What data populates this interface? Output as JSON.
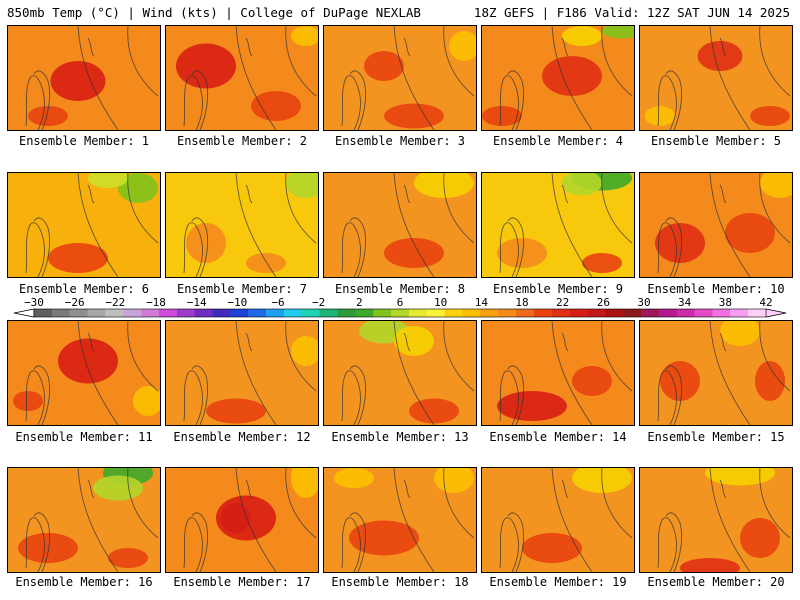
{
  "header": {
    "left": "850mb Temp (°C) | Wind (kts) | College of DuPage NEXLAB",
    "right": "18Z GEFS | F186 Valid: 12Z SAT JUN 14 2025"
  },
  "members": [
    {
      "label": "Ensemble Member: 1",
      "base": "#f48a1c",
      "hot": [
        [
          70,
          55,
          55,
          40,
          "#d81e14"
        ],
        [
          40,
          90,
          40,
          20,
          "#e8420e"
        ]
      ],
      "cool": []
    },
    {
      "label": "Ensemble Member: 2",
      "base": "#f48a1c",
      "hot": [
        [
          40,
          40,
          60,
          45,
          "#d81e14"
        ],
        [
          110,
          80,
          50,
          30,
          "#e8420e"
        ]
      ],
      "cool": [
        [
          140,
          10,
          30,
          20,
          "#fcc000"
        ]
      ]
    },
    {
      "label": "Ensemble Member: 3",
      "base": "#f39420",
      "hot": [
        [
          60,
          40,
          40,
          30,
          "#e8420e"
        ],
        [
          90,
          90,
          60,
          25,
          "#e8420e"
        ]
      ],
      "cool": [
        [
          140,
          20,
          30,
          30,
          "#fcc000"
        ]
      ]
    },
    {
      "label": "Ensemble Member: 4",
      "base": "#f48a1c",
      "hot": [
        [
          90,
          50,
          60,
          40,
          "#e03014"
        ],
        [
          20,
          90,
          40,
          20,
          "#e8420e"
        ]
      ],
      "cool": [
        [
          140,
          5,
          40,
          15,
          "#7fc31c"
        ],
        [
          100,
          10,
          40,
          20,
          "#f7d000"
        ]
      ]
    },
    {
      "label": "Ensemble Member: 5",
      "base": "#f39420",
      "hot": [
        [
          80,
          30,
          45,
          30,
          "#e03014"
        ],
        [
          130,
          90,
          40,
          20,
          "#e8420e"
        ]
      ],
      "cool": [
        [
          20,
          90,
          30,
          20,
          "#fcc000"
        ]
      ]
    },
    {
      "label": "Ensemble Member: 6",
      "base": "#f7b00c",
      "hot": [
        [
          70,
          85,
          60,
          30,
          "#e8420e"
        ]
      ],
      "cool": [
        [
          130,
          15,
          40,
          30,
          "#7fc31c"
        ],
        [
          100,
          5,
          40,
          20,
          "#cce02a"
        ]
      ]
    },
    {
      "label": "Ensemble Member: 7",
      "base": "#f8c80c",
      "hot": [
        [
          40,
          70,
          40,
          40,
          "#f48a1c"
        ],
        [
          100,
          90,
          40,
          20,
          "#f48a1c"
        ]
      ],
      "cool": [
        [
          140,
          10,
          40,
          30,
          "#b2d62a"
        ]
      ]
    },
    {
      "label": "Ensemble Member: 8",
      "base": "#f39420",
      "hot": [
        [
          90,
          80,
          60,
          30,
          "#e8420e"
        ]
      ],
      "cool": [
        [
          120,
          10,
          60,
          30,
          "#f7d000"
        ]
      ]
    },
    {
      "label": "Ensemble Member: 9",
      "base": "#f8c80c",
      "hot": [
        [
          40,
          80,
          50,
          30,
          "#f48a1c"
        ],
        [
          120,
          90,
          40,
          20,
          "#e8420e"
        ]
      ],
      "cool": [
        [
          120,
          5,
          60,
          25,
          "#3ea82a"
        ],
        [
          100,
          10,
          40,
          25,
          "#b2d62a"
        ]
      ]
    },
    {
      "label": "Ensemble Member: 10",
      "base": "#f48a1c",
      "hot": [
        [
          40,
          70,
          50,
          40,
          "#e03014"
        ],
        [
          110,
          60,
          50,
          40,
          "#e8420e"
        ]
      ],
      "cool": [
        [
          140,
          10,
          40,
          30,
          "#fcc000"
        ]
      ]
    },
    {
      "label": "Ensemble Member: 11",
      "base": "#f48a1c",
      "hot": [
        [
          80,
          40,
          60,
          45,
          "#d81e14"
        ],
        [
          20,
          80,
          30,
          20,
          "#e8420e"
        ]
      ],
      "cool": [
        [
          140,
          80,
          30,
          30,
          "#fcc000"
        ]
      ]
    },
    {
      "label": "Ensemble Member: 12",
      "base": "#f39420",
      "hot": [
        [
          70,
          90,
          60,
          25,
          "#e8420e"
        ]
      ],
      "cool": [
        [
          140,
          30,
          30,
          30,
          "#fcc000"
        ]
      ]
    },
    {
      "label": "Ensemble Member: 13",
      "base": "#f39420",
      "hot": [
        [
          110,
          90,
          50,
          25,
          "#e8420e"
        ]
      ],
      "cool": [
        [
          60,
          10,
          50,
          25,
          "#b2d62a"
        ],
        [
          90,
          20,
          40,
          30,
          "#f7d000"
        ]
      ]
    },
    {
      "label": "Ensemble Member: 14",
      "base": "#f48a1c",
      "hot": [
        [
          50,
          85,
          70,
          30,
          "#d81e14"
        ],
        [
          110,
          60,
          40,
          30,
          "#e8420e"
        ]
      ],
      "cool": []
    },
    {
      "label": "Ensemble Member: 15",
      "base": "#f39420",
      "hot": [
        [
          40,
          60,
          40,
          40,
          "#e8420e"
        ],
        [
          130,
          60,
          30,
          40,
          "#e8420e"
        ]
      ],
      "cool": [
        [
          100,
          10,
          40,
          30,
          "#fcc000"
        ]
      ]
    },
    {
      "label": "Ensemble Member: 16",
      "base": "#f39420",
      "hot": [
        [
          40,
          80,
          60,
          30,
          "#e8420e"
        ],
        [
          120,
          90,
          40,
          20,
          "#e8420e"
        ]
      ],
      "cool": [
        [
          120,
          5,
          50,
          25,
          "#3ea82a"
        ],
        [
          110,
          20,
          50,
          25,
          "#b2d62a"
        ]
      ]
    },
    {
      "label": "Ensemble Member: 17",
      "base": "#f48a1c",
      "hot": [
        [
          70,
          50,
          30,
          30,
          "#b01818"
        ],
        [
          80,
          50,
          60,
          45,
          "#d81e14"
        ]
      ],
      "cool": [
        [
          140,
          10,
          30,
          40,
          "#fcc000"
        ]
      ]
    },
    {
      "label": "Ensemble Member: 18",
      "base": "#f39420",
      "hot": [
        [
          60,
          70,
          70,
          35,
          "#e8420e"
        ]
      ],
      "cool": [
        [
          130,
          10,
          40,
          30,
          "#fcc000"
        ],
        [
          30,
          10,
          40,
          20,
          "#fcc000"
        ]
      ]
    },
    {
      "label": "Ensemble Member: 19",
      "base": "#f39420",
      "hot": [
        [
          70,
          80,
          60,
          30,
          "#e8420e"
        ]
      ],
      "cool": [
        [
          120,
          10,
          60,
          30,
          "#f7d000"
        ]
      ]
    },
    {
      "label": "Ensemble Member: 20",
      "base": "#f39420",
      "hot": [
        [
          120,
          70,
          40,
          40,
          "#e8420e"
        ],
        [
          70,
          100,
          60,
          20,
          "#e03014"
        ]
      ],
      "cool": [
        [
          100,
          5,
          70,
          25,
          "#f7d000"
        ]
      ]
    }
  ],
  "colorbar": {
    "ticks": [
      "−30",
      "−26",
      "−22",
      "−18",
      "−14",
      "−10",
      "−6",
      "−2",
      "2",
      "6",
      "10",
      "14",
      "18",
      "22",
      "26",
      "30",
      "34",
      "38",
      "42"
    ],
    "colors": [
      "#5f5f5f",
      "#7a7a7a",
      "#8f8f8f",
      "#a7a7a7",
      "#bfbfbf",
      "#c7a5d8",
      "#d27ad8",
      "#d04cd8",
      "#9c3ccc",
      "#6f2bc4",
      "#3f2bbf",
      "#1d42d6",
      "#1e6ae6",
      "#1ea0f0",
      "#22ccec",
      "#1ed2b4",
      "#1eb478",
      "#2a9a3c",
      "#3ea82a",
      "#7fc31c",
      "#b2d62a",
      "#e4ea30",
      "#fcf23c",
      "#fcd20c",
      "#fcc000",
      "#f7a012",
      "#f48a1c",
      "#ee6a1c",
      "#e8420e",
      "#e03014",
      "#d81e14",
      "#c41818",
      "#a81212",
      "#8c1a1a",
      "#9c1a5a",
      "#b41a8c",
      "#cc2aa8",
      "#e04cc8",
      "#f070e0",
      "#f8a0f0",
      "#fcd0f8"
    ]
  }
}
